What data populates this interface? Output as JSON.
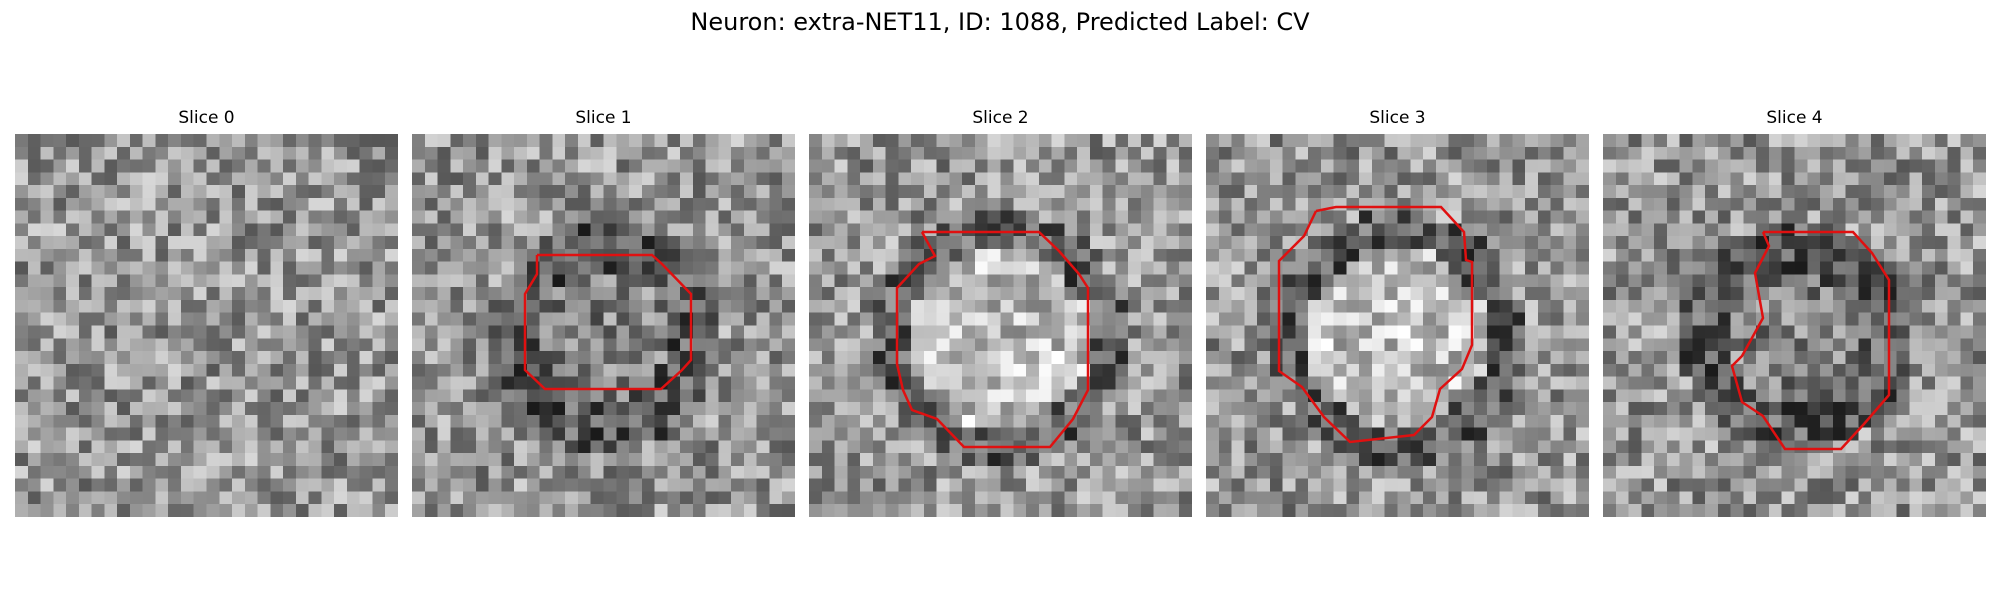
{
  "title": "Neuron: extra-NET11, ID: 1088, Predicted Label: CV",
  "contour_color": "#e01010",
  "panels": [
    {
      "label": "Slice 0",
      "has_contour": false,
      "cell": "none"
    },
    {
      "label": "Slice 1",
      "has_contour": true,
      "cell": "dark-ring"
    },
    {
      "label": "Slice 2",
      "has_contour": true,
      "cell": "bright-core"
    },
    {
      "label": "Slice 3",
      "has_contour": true,
      "cell": "bright-core"
    },
    {
      "label": "Slice 4",
      "has_contour": true,
      "cell": "dark-ring"
    }
  ]
}
